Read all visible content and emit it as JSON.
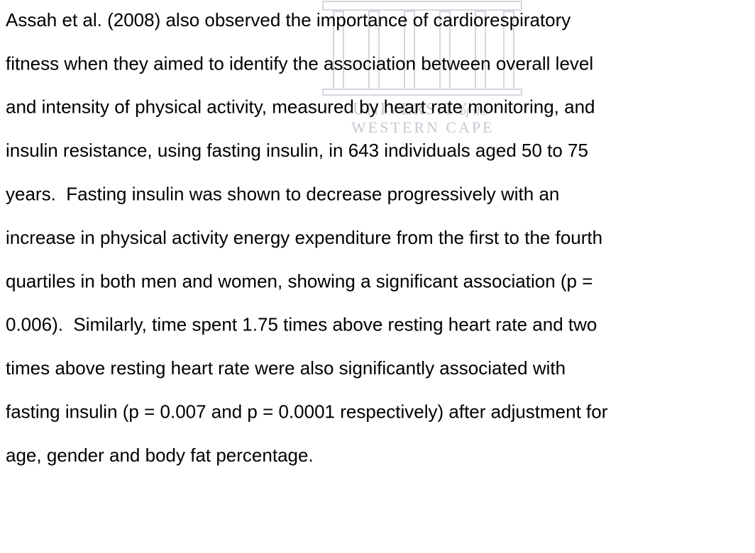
{
  "watermark": {
    "name": "UNIVERSITY",
    "of": "of the",
    "place": "WESTERN CAPE"
  },
  "paragraph": {
    "lines": [
      "Assah et al. (2008) also observed the importance of cardiorespiratory",
      "fitness when they aimed to identify the association between overall level",
      "and intensity of physical activity, measured by heart rate monitoring, and",
      "insulin resistance, using fasting insulin, in 643 individuals aged 50 to 75",
      "years.  Fasting insulin was shown to decrease progressively with an",
      "increase in physical activity energy expenditure from the first to the fourth",
      "quartiles in both men and women, showing a significant association (p =",
      "0.006).  Similarly, time spent 1.75 times above resting heart rate and two",
      "times above resting heart rate were also significantly associated with",
      "fasting insulin (p = 0.007 and p = 0.0001 respectively) after adjustment for",
      "age, gender and body fat percentage."
    ]
  }
}
